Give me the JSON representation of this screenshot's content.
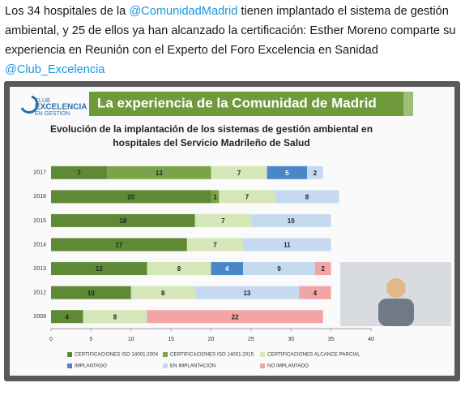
{
  "tweet": {
    "parts": [
      {
        "text": "Los 34 hospitales de la ",
        "mention": false
      },
      {
        "text": "@ComunidadMadrid",
        "mention": true
      },
      {
        "text": " tienen implantado el sistema de gestión ambiental, y 25 de ellos ya han alcanzado la certificación: Esther Moreno comparte su experiencia en Reunión con el Experto del Foro Excelencia en Sanidad ",
        "mention": false
      },
      {
        "text": "@Club_Excelencia",
        "mention": true
      }
    ]
  },
  "slide": {
    "logo": [
      "CLUB",
      "EXCELENCIA",
      "EN GESTIÓN"
    ],
    "header": "La experiencia de la Comunidad de Madrid"
  },
  "chart_data": {
    "type": "stacked-bar-horizontal",
    "title": [
      "Evolución de la implantación de los sistemas de gestión ambiental en",
      "hospitales del Servicio Madrileño de Salud"
    ],
    "categories": [
      "2017",
      "2016",
      "2015",
      "2014",
      "2013",
      "2012",
      "2009"
    ],
    "series": [
      {
        "name": "CERTIFICACIONES ISO 14001:2004",
        "color": "#5f8a35",
        "values": [
          7,
          20,
          18,
          17,
          12,
          10,
          4
        ]
      },
      {
        "name": "CERTIFICACIONES ISO 14001:2015",
        "color": "#7ba44a",
        "values": [
          13,
          1,
          null,
          null,
          null,
          null,
          null
        ]
      },
      {
        "name": "CERTIFICACIONES ALCANCE PARCIAL",
        "color": "#d5e7b8",
        "values": [
          7,
          7,
          7,
          7,
          8,
          8,
          8
        ]
      },
      {
        "name": "IMPLANTADO",
        "color": "#4a86c8",
        "values": [
          5,
          null,
          null,
          null,
          4,
          null,
          null
        ]
      },
      {
        "name": "EN IMPLANTACIÓN",
        "color": "#c6daef",
        "values": [
          2,
          8,
          10,
          11,
          9,
          13,
          null
        ]
      },
      {
        "name": "NO IMPLANTADO",
        "color": "#f3a5a5",
        "values": [
          null,
          null,
          null,
          null,
          2,
          4,
          22
        ]
      }
    ],
    "xlim": [
      0,
      40
    ],
    "xticks": [
      0,
      5,
      10,
      15,
      20,
      25,
      30,
      35,
      40
    ]
  }
}
